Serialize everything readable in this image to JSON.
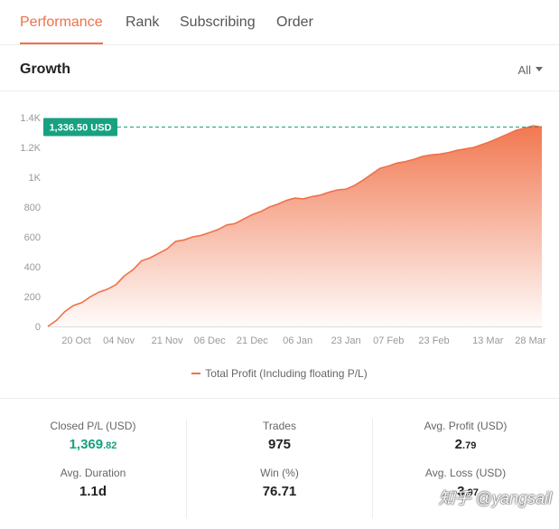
{
  "tabs": [
    {
      "label": "Performance",
      "active": true
    },
    {
      "label": "Rank",
      "active": false
    },
    {
      "label": "Subscribing",
      "active": false
    },
    {
      "label": "Order",
      "active": false
    }
  ],
  "growth": {
    "title": "Growth",
    "range": "All",
    "range_icon": "caret-down-icon"
  },
  "colors": {
    "accent": "#f07148",
    "current_badge": "#17a181",
    "positive": "#17a181"
  },
  "chart_data": {
    "type": "area",
    "title": "",
    "xlabel": "",
    "ylabel": "",
    "y_tick_labels": [
      "0",
      "200",
      "400",
      "600",
      "800",
      "1K",
      "1.2K",
      "1.4K"
    ],
    "y_ticks": [
      0,
      200,
      400,
      600,
      800,
      1000,
      1200,
      1400
    ],
    "ylim": [
      0,
      1400
    ],
    "x_tick_labels": [
      "20 Oct",
      "04 Nov",
      "21 Nov",
      "06 Dec",
      "21 Dec",
      "06 Jan",
      "23 Jan",
      "07 Feb",
      "23 Feb",
      "13 Mar",
      "28 Mar"
    ],
    "x_ticks": [
      "2023-10-20",
      "2023-11-04",
      "2023-11-21",
      "2023-12-06",
      "2023-12-21",
      "2024-01-06",
      "2024-01-23",
      "2024-02-07",
      "2024-02-23",
      "2024-03-13",
      "2024-03-28"
    ],
    "xlim": [
      "2023-10-10",
      "2024-04-01"
    ],
    "grid": false,
    "legend_position": "bottom",
    "current_value_label": "1,336.50 USD",
    "current_value": 1336.5,
    "series": [
      {
        "name": "Total Profit (Including floating P/L)",
        "x": [
          "2023-10-10",
          "2023-10-13",
          "2023-10-16",
          "2023-10-19",
          "2023-10-22",
          "2023-10-25",
          "2023-10-28",
          "2023-10-31",
          "2023-11-03",
          "2023-11-06",
          "2023-11-09",
          "2023-11-12",
          "2023-11-15",
          "2023-11-18",
          "2023-11-21",
          "2023-11-24",
          "2023-11-27",
          "2023-11-30",
          "2023-12-03",
          "2023-12-06",
          "2023-12-09",
          "2023-12-12",
          "2023-12-15",
          "2023-12-18",
          "2023-12-21",
          "2023-12-24",
          "2023-12-27",
          "2023-12-30",
          "2024-01-02",
          "2024-01-05",
          "2024-01-08",
          "2024-01-11",
          "2024-01-14",
          "2024-01-17",
          "2024-01-20",
          "2024-01-23",
          "2024-01-26",
          "2024-01-29",
          "2024-02-01",
          "2024-02-04",
          "2024-02-07",
          "2024-02-10",
          "2024-02-13",
          "2024-02-16",
          "2024-02-19",
          "2024-02-22",
          "2024-02-25",
          "2024-02-28",
          "2024-03-02",
          "2024-03-05",
          "2024-03-08",
          "2024-03-11",
          "2024-03-14",
          "2024-03-17",
          "2024-03-20",
          "2024-03-23",
          "2024-03-26",
          "2024-03-29",
          "2024-04-01"
        ],
        "y": [
          0,
          40,
          100,
          140,
          160,
          200,
          230,
          250,
          280,
          340,
          380,
          440,
          460,
          490,
          520,
          570,
          580,
          600,
          610,
          630,
          650,
          680,
          690,
          720,
          750,
          770,
          800,
          820,
          845,
          860,
          855,
          870,
          880,
          900,
          915,
          920,
          945,
          980,
          1020,
          1060,
          1075,
          1095,
          1105,
          1120,
          1140,
          1150,
          1155,
          1165,
          1180,
          1190,
          1200,
          1220,
          1240,
          1265,
          1290,
          1315,
          1330,
          1345,
          1336.5
        ]
      }
    ]
  },
  "stats": [
    {
      "label": "Closed P/L (USD)",
      "int": "1,369",
      "dec": ".82",
      "color": "green"
    },
    {
      "label": "Trades",
      "int": "975",
      "dec": "",
      "color": "default"
    },
    {
      "label": "Avg. Profit (USD)",
      "int": "2",
      "dec": ".79",
      "color": "default"
    },
    {
      "label": "Avg. Duration",
      "int": "1.1d",
      "dec": "",
      "color": "default"
    },
    {
      "label": "Win (%)",
      "int": "76.71",
      "dec": "",
      "color": "default"
    },
    {
      "label": "Avg. Loss (USD)",
      "int": "-3",
      "dec": ".97",
      "color": "default"
    }
  ],
  "watermark": "知乎 @yangsail"
}
